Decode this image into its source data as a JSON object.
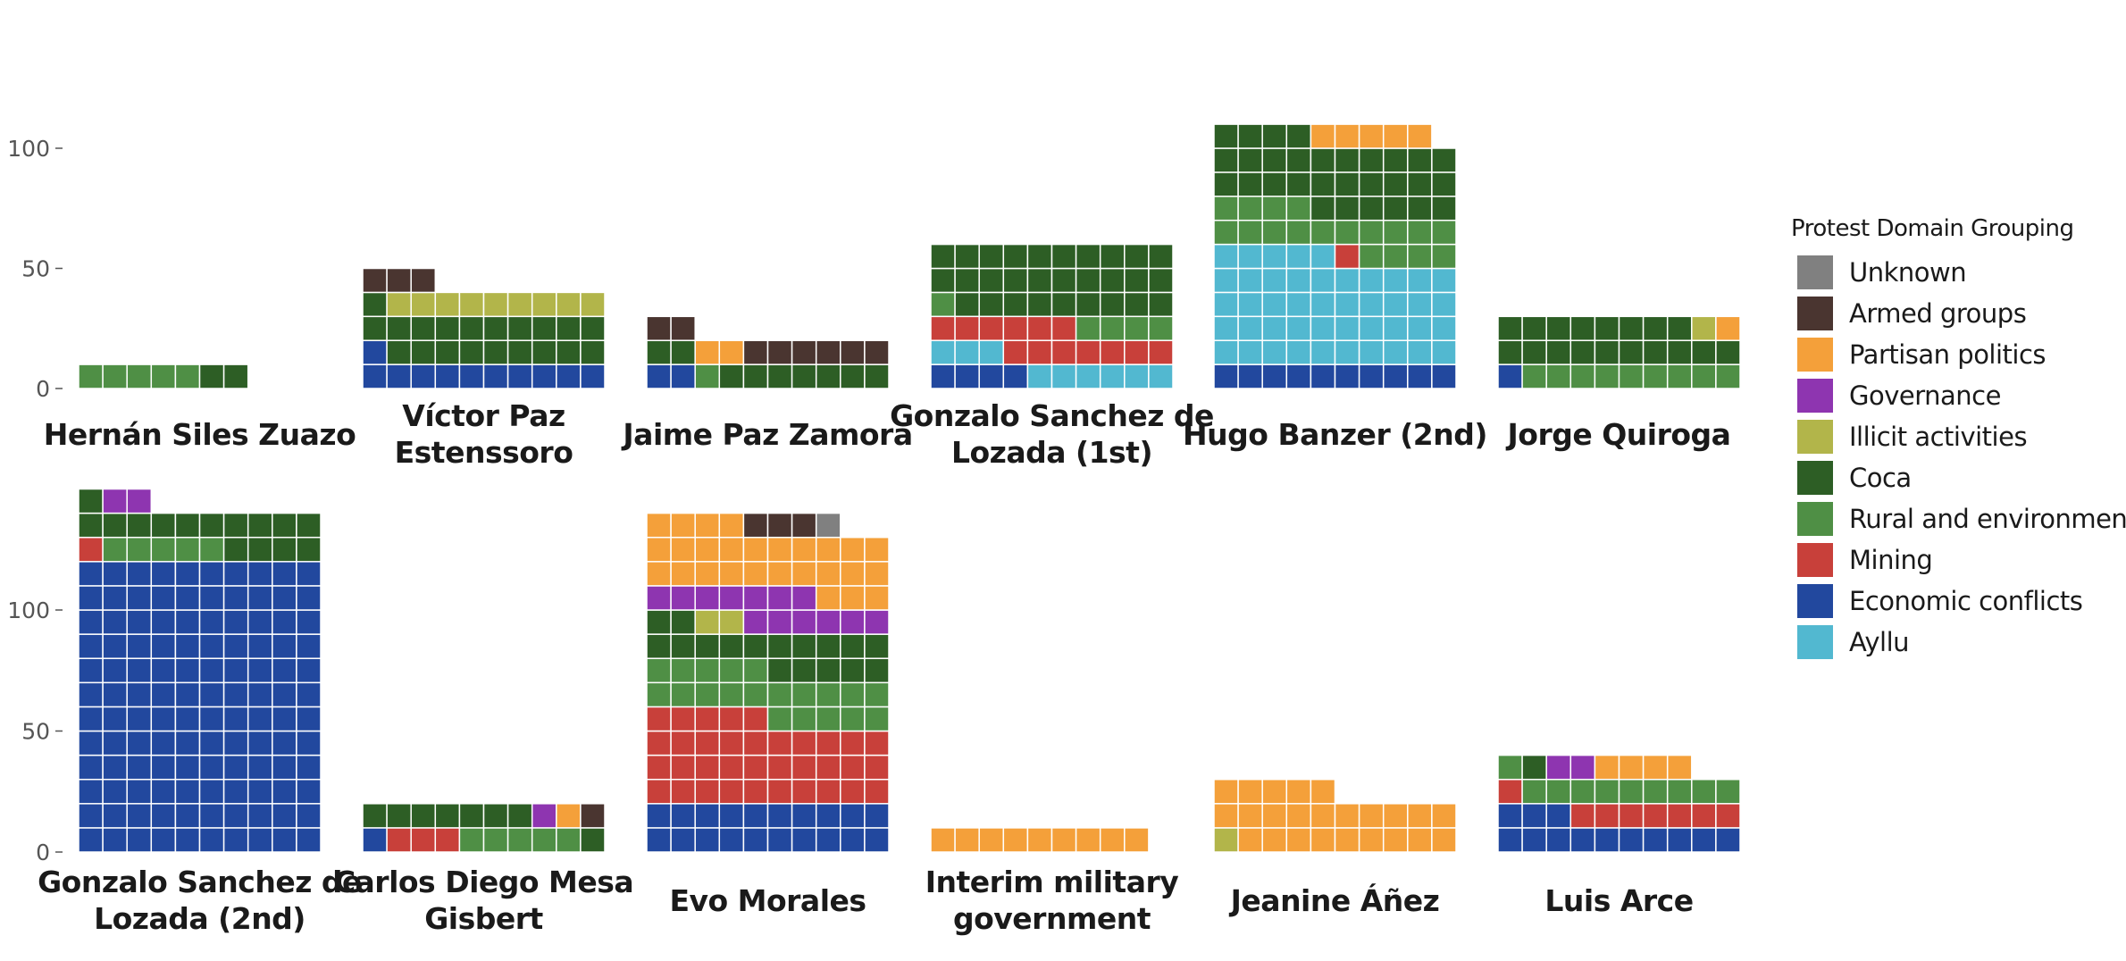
{
  "chart_data": {
    "type": "waffle",
    "ylim": [
      0,
      130
    ],
    "y_ticks_top": [
      0,
      50,
      100
    ],
    "y_ticks_bottom": [
      0,
      50,
      100
    ],
    "legend": {
      "title": "Protest Domain Grouping",
      "position": "right",
      "entries": [
        {
          "key": "unknown",
          "label": "Unknown",
          "color": "#808080"
        },
        {
          "key": "armed",
          "label": "Armed groups",
          "color": "#4a3530"
        },
        {
          "key": "partisan",
          "label": "Partisan politics",
          "color": "#f4a03a"
        },
        {
          "key": "governance",
          "label": "Governance",
          "color": "#8e35b0"
        },
        {
          "key": "illicit",
          "label": "Illicit activities",
          "color": "#b2b54a"
        },
        {
          "key": "coca",
          "label": "Coca",
          "color": "#2d5e25"
        },
        {
          "key": "rural",
          "label": "Rural and environmental",
          "color": "#4f8f45"
        },
        {
          "key": "mining",
          "label": "Mining",
          "color": "#c8403a"
        },
        {
          "key": "economic",
          "label": "Economic conflicts",
          "color": "#22489e"
        },
        {
          "key": "ayllu",
          "label": "Ayllu",
          "color": "#52b8d0"
        }
      ]
    },
    "panels": [
      {
        "title": [
          "Hernán Siles Zuazo"
        ],
        "counts": {
          "rural": 5,
          "coca": 2
        }
      },
      {
        "title": [
          "Víctor Paz",
          "Estenssoro"
        ],
        "counts": {
          "economic": 11,
          "coca": 20,
          "illicit": 9,
          "armed": 3
        }
      },
      {
        "title": [
          "Jaime Paz Zamora"
        ],
        "counts": {
          "economic": 2,
          "rural": 1,
          "coca": 9,
          "partisan": 2,
          "armed": 8
        }
      },
      {
        "title": [
          "Gonzalo Sanchez de",
          "Lozada (1st)"
        ],
        "counts": {
          "ayllu": 9,
          "economic": 4,
          "mining": 13,
          "rural": 5,
          "coca": 29
        }
      },
      {
        "title": [
          "Hugo Banzer (2nd)"
        ],
        "counts": {
          "ayllu": 45,
          "economic": 10,
          "mining": 1,
          "rural": 18,
          "coca": 30,
          "partisan": 5
        }
      },
      {
        "title": [
          "Jorge Quiroga"
        ],
        "counts": {
          "economic": 1,
          "rural": 9,
          "coca": 18,
          "illicit": 1,
          "partisan": 1
        }
      },
      {
        "title": [
          "Gonzalo Sanchez de",
          "Lozada (2nd)"
        ],
        "counts": {
          "economic": 120,
          "mining": 1,
          "rural": 5,
          "coca": 15,
          "governance": 2
        }
      },
      {
        "title": [
          "Carlos Diego Mesa",
          "Gisbert"
        ],
        "counts": {
          "economic": 1,
          "mining": 3,
          "rural": 5,
          "coca": 8,
          "governance": 1,
          "partisan": 1,
          "armed": 1
        }
      },
      {
        "title": [
          "Evo Morales"
        ],
        "counts": {
          "economic": 20,
          "mining": 35,
          "rural": 20,
          "coca": 17,
          "illicit": 2,
          "governance": 13,
          "partisan": 27,
          "armed": 3,
          "unknown": 1
        }
      },
      {
        "title": [
          "Interim military",
          "government"
        ],
        "counts": {
          "partisan": 9
        }
      },
      {
        "title": [
          "Jeanine Áñez"
        ],
        "counts": {
          "illicit": 1,
          "partisan": 24
        }
      },
      {
        "title": [
          "Luis Arce"
        ],
        "counts": {
          "economic": 13,
          "mining": 8,
          "rural": 10,
          "coca": 1,
          "governance": 2,
          "partisan": 4
        }
      }
    ]
  }
}
